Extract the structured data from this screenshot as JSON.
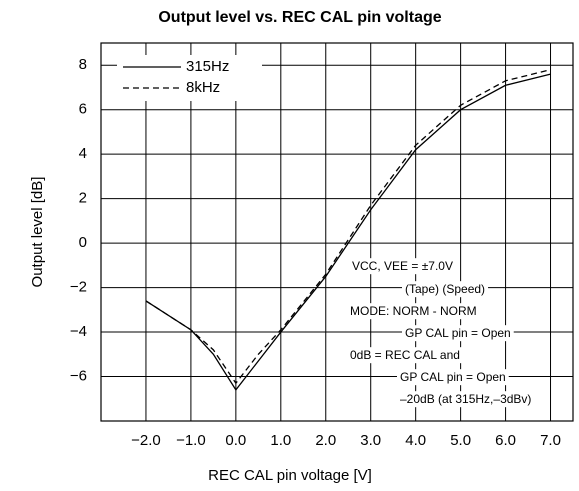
{
  "chart_data": {
    "type": "line",
    "title": "Output level vs. REC CAL pin voltage",
    "x_label": "REC CAL pin voltage [V]",
    "y_label": "Output level [dB]",
    "series": [
      {
        "name": "315Hz",
        "color": "#000000",
        "style": "solid",
        "x": [
          -2,
          -1,
          -0.5,
          0,
          0.5,
          1,
          2,
          3,
          4,
          5,
          6,
          7
        ],
        "values": [
          -2.6,
          -3.9,
          -5.0,
          -6.6,
          -5.3,
          -4.0,
          -1.5,
          1.5,
          4.2,
          6.0,
          7.1,
          7.6
        ]
      },
      {
        "name": "8kHz",
        "color": "#000000",
        "style": "dashed",
        "x": [
          -2,
          -1,
          -0.5,
          0,
          0.5,
          1,
          2,
          3,
          4,
          5,
          6,
          7
        ],
        "values": [
          -2.6,
          -3.9,
          -4.8,
          -6.3,
          -5.0,
          -3.9,
          -1.4,
          1.7,
          4.4,
          6.2,
          7.3,
          7.8
        ]
      }
    ],
    "xlim": [
      -3,
      7.5
    ],
    "xticks": [
      {
        "value": -2,
        "label": "−2.0"
      },
      {
        "value": -1,
        "label": "−1.0"
      },
      {
        "value": 0,
        "label": "0.0"
      },
      {
        "value": 1,
        "label": "1.0"
      },
      {
        "value": 2,
        "label": "2.0"
      },
      {
        "value": 3,
        "label": "3.0"
      },
      {
        "value": 4,
        "label": "4.0"
      },
      {
        "value": 5,
        "label": "5.0"
      },
      {
        "value": 6,
        "label": "6.0"
      },
      {
        "value": 7,
        "label": "7.0"
      }
    ],
    "ylim": [
      -8,
      9
    ],
    "yticks": [
      {
        "value": -6,
        "label": "−6"
      },
      {
        "value": -4,
        "label": "−4"
      },
      {
        "value": -2,
        "label": "−2"
      },
      0,
      2,
      4,
      6,
      8
    ],
    "grid": true,
    "legend": "upper left",
    "annotations": [
      "VCC, VEE = ±7.0V",
      "(Tape)   (Speed)",
      "MODE: NORM - NORM",
      "GP CAL pin = Open",
      "0dB = REC CAL and",
      "GP CAL pin = Open",
      "–20dB (at 315Hz,–3dBv)"
    ]
  }
}
